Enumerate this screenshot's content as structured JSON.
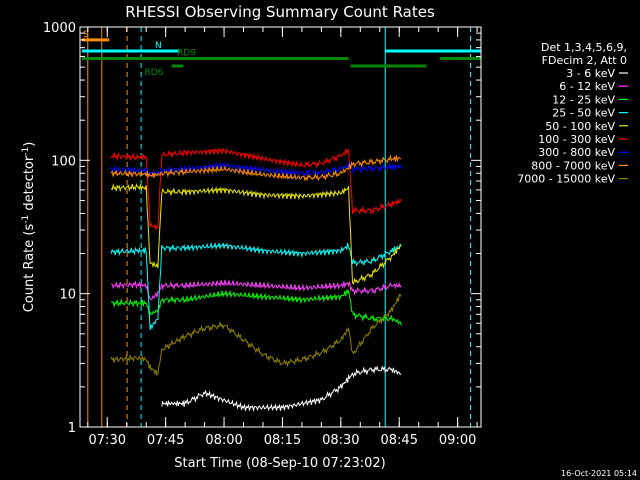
{
  "chart_data": {
    "type": "line",
    "title": "RHESSI Observing Summary Count Rates",
    "xlabel": "Start Time (08-Sep-10 07:23:02)",
    "ylabel_main": "Count Rate (s",
    "ylabel_sup": "-1",
    "ylabel_rest": " detector",
    "ylabel_sup2": "-1",
    "ylabel_end": ")",
    "timestamp": "16-Oct-2021 05:14",
    "xlim": [
      443,
      546
    ],
    "ylim": [
      1,
      1000
    ],
    "yscale": "log",
    "x_ticks": [
      {
        "value": 450,
        "label": "07:30"
      },
      {
        "value": 465,
        "label": "07:45"
      },
      {
        "value": 480,
        "label": "08:00"
      },
      {
        "value": 495,
        "label": "08:15"
      },
      {
        "value": 510,
        "label": "08:30"
      },
      {
        "value": 525,
        "label": "08:45"
      },
      {
        "value": 540,
        "label": "09:00"
      }
    ],
    "y_ticks": [
      {
        "value": 1,
        "label": "1"
      },
      {
        "value": 10,
        "label": "10"
      },
      {
        "value": 100,
        "label": "100"
      },
      {
        "value": 1000,
        "label": "1000"
      }
    ],
    "legend": {
      "position": "top-right",
      "header": [
        "Det 1,3,4,5,6,9,",
        "FDecim 2, Att 0"
      ],
      "entries": [
        {
          "label": "3 - 6 keV",
          "color": "#ffffff"
        },
        {
          "label": "6 - 12 keV",
          "color": "#ff40ff"
        },
        {
          "label": "12 - 25 keV",
          "color": "#00ff00"
        },
        {
          "label": "25 - 50 keV",
          "color": "#00ffff"
        },
        {
          "label": "50 - 100 keV",
          "color": "#e8e800"
        },
        {
          "label": "100 - 300 keV",
          "color": "#ff0000"
        },
        {
          "label": "300 - 800 keV",
          "color": "#0000ff"
        },
        {
          "label": "800 - 7000 keV",
          "color": "#ff8c00"
        },
        {
          "label": "7000 - 15000 keV",
          "color": "#8b8000"
        }
      ]
    },
    "flags": [
      {
        "label": "S",
        "color": "#ff8c00",
        "y": 800,
        "segments": [
          [
            443.5,
            450.5
          ]
        ]
      },
      {
        "label": "N",
        "color": "#00ffff",
        "y": 660,
        "segments": [
          [
            443.5,
            468.5
          ],
          [
            521.5,
            546
          ]
        ]
      },
      {
        "label": "RD9",
        "color": "#008800",
        "y": 580,
        "segments": [
          [
            443.5,
            512
          ],
          [
            535.5,
            546
          ]
        ]
      },
      {
        "label": "RD6",
        "color": "#008800",
        "y": 510,
        "segments": [
          [
            466.5,
            469.5
          ],
          [
            512.5,
            532
          ]
        ]
      }
    ],
    "vertical_lines": [
      {
        "x": 445,
        "color": "#ff8c00",
        "style": "solid"
      },
      {
        "x": 448.6,
        "color": "#ff8c00",
        "style": "solid"
      },
      {
        "x": 455.1,
        "color": "#ff8c00",
        "style": "dashed"
      },
      {
        "x": 458.7,
        "color": "#00ffff",
        "style": "dashed"
      },
      {
        "x": 521.4,
        "color": "#00ffff",
        "style": "solid"
      },
      {
        "x": 543.3,
        "color": "#00ffff",
        "style": "dashed"
      }
    ],
    "series": [
      {
        "color": "#ffffff",
        "values": [
          [
            464,
            1.5
          ],
          [
            466,
            1.5
          ],
          [
            470,
            1.5
          ],
          [
            475,
            1.8
          ],
          [
            485,
            1.4
          ],
          [
            495,
            1.4
          ],
          [
            505,
            1.6
          ],
          [
            510,
            2
          ],
          [
            513,
            2.5
          ],
          [
            518,
            2.7
          ],
          [
            523,
            2.7
          ],
          [
            525.5,
            2.5
          ]
        ]
      },
      {
        "color": "#ff40ff",
        "values": [
          [
            451,
            11.5
          ],
          [
            458,
            11.7
          ],
          [
            460,
            11.5
          ],
          [
            461,
            9
          ],
          [
            463,
            10
          ],
          [
            464,
            11.5
          ],
          [
            470,
            11.5
          ],
          [
            480,
            12
          ],
          [
            490,
            11.5
          ],
          [
            500,
            11
          ],
          [
            510,
            11.5
          ],
          [
            512,
            12
          ],
          [
            513,
            10.5
          ],
          [
            518,
            10.5
          ],
          [
            523,
            11.5
          ],
          [
            525.5,
            11.5
          ]
        ]
      },
      {
        "color": "#00ff00",
        "values": [
          [
            451,
            8.5
          ],
          [
            458,
            8.5
          ],
          [
            460,
            8.5
          ],
          [
            461,
            7
          ],
          [
            463,
            7.5
          ],
          [
            464,
            9
          ],
          [
            470,
            9
          ],
          [
            480,
            10
          ],
          [
            490,
            9.5
          ],
          [
            500,
            9
          ],
          [
            510,
            9.5
          ],
          [
            512,
            10.5
          ],
          [
            513,
            7
          ],
          [
            518,
            6.5
          ],
          [
            523,
            6.5
          ],
          [
            525.5,
            6
          ]
        ]
      },
      {
        "color": "#00ffff",
        "values": [
          [
            451,
            20.5
          ],
          [
            458,
            21
          ],
          [
            460,
            21
          ],
          [
            461,
            5.5
          ],
          [
            463,
            6.5
          ],
          [
            464,
            22
          ],
          [
            470,
            22
          ],
          [
            480,
            23
          ],
          [
            490,
            21
          ],
          [
            500,
            20
          ],
          [
            510,
            21
          ],
          [
            512,
            23
          ],
          [
            513,
            17
          ],
          [
            518,
            17.5
          ],
          [
            523,
            21
          ],
          [
            525.5,
            23
          ]
        ]
      },
      {
        "color": "#e8e800",
        "values": [
          [
            451,
            62
          ],
          [
            458,
            63
          ],
          [
            460,
            62
          ],
          [
            461,
            17
          ],
          [
            463,
            16
          ],
          [
            464,
            58
          ],
          [
            470,
            58
          ],
          [
            480,
            60
          ],
          [
            490,
            55
          ],
          [
            500,
            54
          ],
          [
            510,
            57
          ],
          [
            512,
            62
          ],
          [
            513,
            12
          ],
          [
            518,
            14
          ],
          [
            523,
            19
          ],
          [
            525.5,
            23
          ]
        ]
      },
      {
        "color": "#ff0000",
        "values": [
          [
            451,
            108
          ],
          [
            458,
            105
          ],
          [
            460,
            107
          ],
          [
            461,
            33
          ],
          [
            463,
            31
          ],
          [
            464,
            110
          ],
          [
            470,
            114
          ],
          [
            480,
            118
          ],
          [
            490,
            103
          ],
          [
            500,
            92
          ],
          [
            505,
            95
          ],
          [
            510,
            108
          ],
          [
            512,
            120
          ],
          [
            513,
            42
          ],
          [
            518,
            42
          ],
          [
            523,
            47
          ],
          [
            525.5,
            50
          ]
        ]
      },
      {
        "color": "#0000ff",
        "values": [
          [
            451,
            86
          ],
          [
            458,
            84
          ],
          [
            460,
            84
          ],
          [
            461,
            79
          ],
          [
            463,
            80
          ],
          [
            464,
            84
          ],
          [
            470,
            86
          ],
          [
            480,
            92
          ],
          [
            490,
            85
          ],
          [
            500,
            80
          ],
          [
            505,
            81
          ],
          [
            510,
            87
          ],
          [
            512,
            92
          ],
          [
            513,
            86
          ],
          [
            518,
            87
          ],
          [
            523,
            89
          ],
          [
            525.5,
            90
          ]
        ]
      },
      {
        "color": "#ff8c00",
        "values": [
          [
            451,
            80
          ],
          [
            458,
            79
          ],
          [
            460,
            79
          ],
          [
            461,
            77
          ],
          [
            463,
            78
          ],
          [
            464,
            80
          ],
          [
            470,
            82
          ],
          [
            480,
            86
          ],
          [
            490,
            78
          ],
          [
            500,
            74
          ],
          [
            505,
            75
          ],
          [
            510,
            80
          ],
          [
            512,
            88
          ],
          [
            513,
            94
          ],
          [
            518,
            97
          ],
          [
            523,
            102
          ],
          [
            525.5,
            104
          ]
        ]
      },
      {
        "color": "#8b8000",
        "values": [
          [
            451,
            3.2
          ],
          [
            458,
            3.3
          ],
          [
            460,
            3.2
          ],
          [
            461,
            2.8
          ],
          [
            463,
            2.5
          ],
          [
            464,
            3.8
          ],
          [
            470,
            4.8
          ],
          [
            475,
            5.5
          ],
          [
            480,
            5.8
          ],
          [
            485,
            4.5
          ],
          [
            490,
            3.5
          ],
          [
            495,
            3
          ],
          [
            500,
            3.2
          ],
          [
            505,
            3.6
          ],
          [
            510,
            4.5
          ],
          [
            512,
            5.5
          ],
          [
            513,
            3.5
          ],
          [
            518,
            5.5
          ],
          [
            523,
            7.5
          ],
          [
            525.5,
            10
          ]
        ]
      }
    ]
  }
}
